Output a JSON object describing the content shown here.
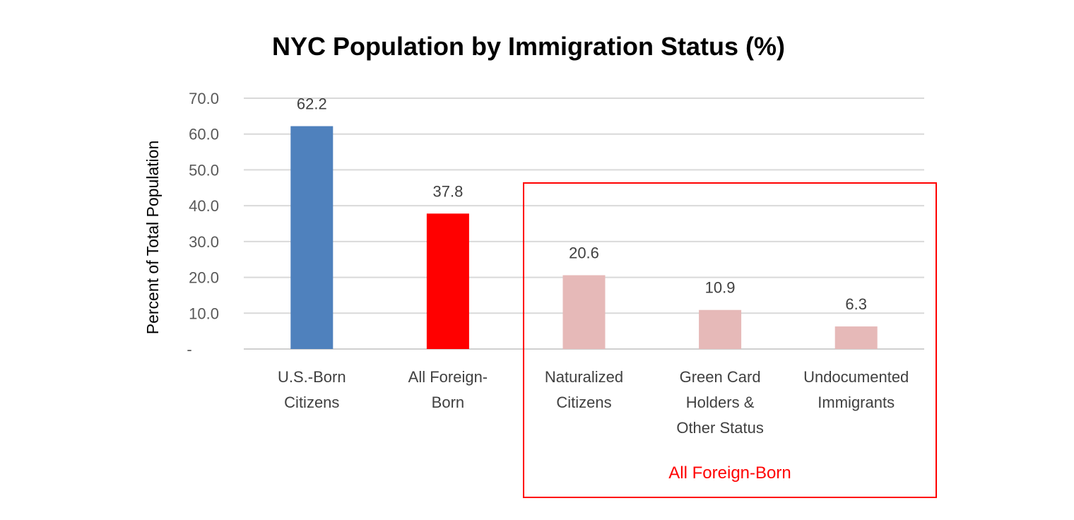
{
  "chart_data": {
    "type": "bar",
    "title": "NYC Population by Immigration Status (%)",
    "xlabel": "",
    "ylabel": "Percent of Total Population",
    "ylim": [
      0,
      70
    ],
    "yticks": [
      "-",
      "10.0",
      "20.0",
      "30.0",
      "40.0",
      "50.0",
      "60.0",
      "70.0"
    ],
    "grid": true,
    "categories": [
      [
        "U.S.-Born",
        "Citizens"
      ],
      [
        "All Foreign-",
        "Born"
      ],
      [
        "Naturalized",
        "Citizens"
      ],
      [
        "Green Card",
        "Holders &",
        "Other Status"
      ],
      [
        "Undocumented",
        "Immigrants"
      ]
    ],
    "values": [
      62.2,
      37.8,
      20.6,
      10.9,
      6.3
    ],
    "data_labels": [
      "62.2",
      "37.8",
      "20.6",
      "10.9",
      "6.3"
    ],
    "colors": [
      "#4f81bd",
      "#ff0000",
      "#e6b9b8",
      "#e6b9b8",
      "#e6b9b8"
    ],
    "annotation": {
      "text": "All Foreign-Born",
      "color": "#ff0000"
    }
  }
}
